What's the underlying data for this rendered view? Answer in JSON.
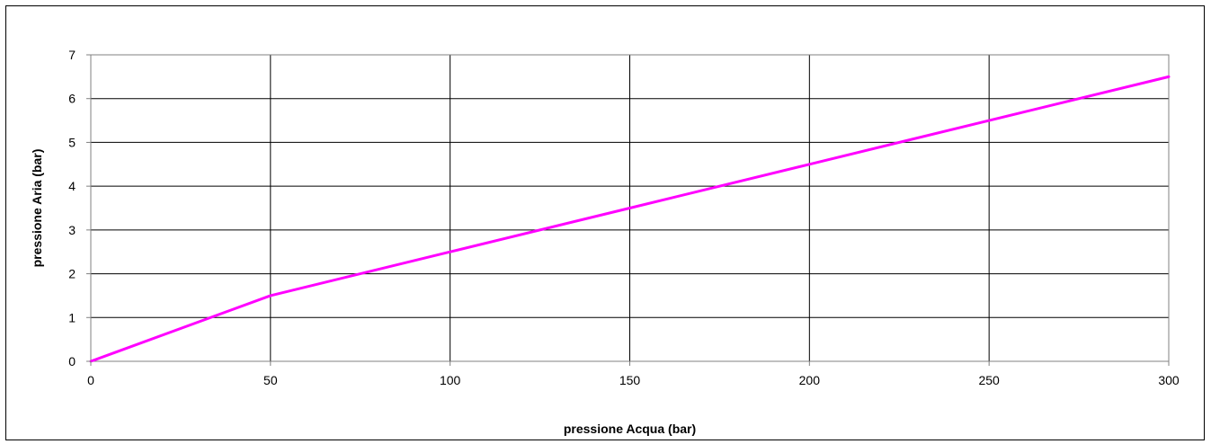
{
  "chart_data": {
    "type": "line",
    "title": "",
    "xlabel": "pressione Acqua (bar)",
    "ylabel": "pressione Aria (bar)",
    "xlim": [
      0,
      300
    ],
    "ylim": [
      0,
      7
    ],
    "x_ticks": [
      0,
      50,
      100,
      150,
      200,
      250,
      300
    ],
    "y_ticks": [
      0,
      1,
      2,
      3,
      4,
      5,
      6,
      7
    ],
    "x_tick_labels": [
      "0",
      "50",
      "100",
      "150",
      "200",
      "250",
      "300"
    ],
    "y_tick_labels": [
      "0",
      "1",
      "2",
      "3",
      "4",
      "5",
      "6",
      "7"
    ],
    "grid": true,
    "legend": "none",
    "series": [
      {
        "color": "#ff00ff",
        "x": [
          0,
          50,
          100,
          150,
          200,
          250,
          300
        ],
        "y": [
          0,
          1.5,
          2.5,
          3.5,
          4.5,
          5.5,
          6.5
        ]
      }
    ]
  }
}
